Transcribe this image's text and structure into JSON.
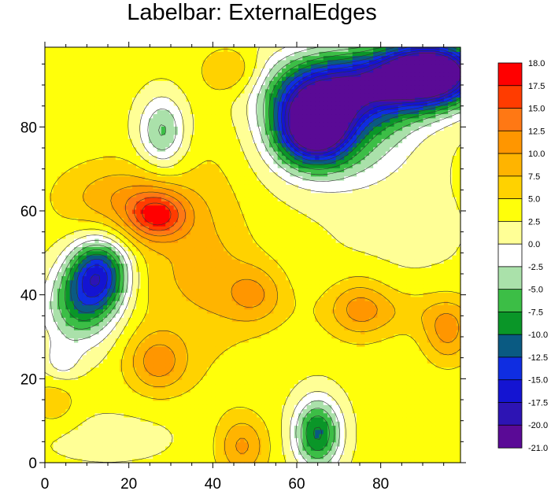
{
  "chart_data": {
    "type": "heatmap",
    "subtype": "filled-contour",
    "title": "Labelbar: ExternalEdges",
    "xlabel": "",
    "ylabel": "",
    "xlim": [
      0,
      99
    ],
    "ylim": [
      0,
      99
    ],
    "x_ticks": [
      0,
      20,
      40,
      60,
      80
    ],
    "x_tick_labels": [
      "0",
      "20",
      "40",
      "60",
      "80"
    ],
    "y_ticks": [
      0,
      20,
      40,
      60,
      80
    ],
    "y_tick_labels": [
      "0",
      "20",
      "40",
      "60",
      "80"
    ],
    "x_minor_step": 5,
    "y_minor_step": 5,
    "grid": false,
    "levels": [
      -21.0,
      -20.0,
      -17.5,
      -15.0,
      -12.5,
      -10.0,
      -7.5,
      -5.0,
      -2.5,
      0.0,
      2.5,
      5.0,
      7.5,
      10.0,
      12.5,
      15.0,
      17.5,
      18.0
    ],
    "level_labels": [
      "-21.0",
      "-20.0",
      "-17.5",
      "-15.0",
      "-12.5",
      "-10.0",
      "-7.5",
      "-5.0",
      "-2.5",
      "0.0",
      "2.5",
      "5.0",
      "7.5",
      "10.0",
      "12.5",
      "15.0",
      "17.5",
      "18.0"
    ],
    "colors": [
      "#5a0a96",
      "#2d14b4",
      "#1414d2",
      "#0f2de1",
      "#0a5a82",
      "#0a9628",
      "#3cbe46",
      "#aae1aa",
      "#ffffff",
      "#ffff96",
      "#ffff0a",
      "#ffd200",
      "#ffb400",
      "#ff9600",
      "#ff7814",
      "#ff3c00",
      "#ff0000"
    ],
    "colorbar": {
      "position": "right",
      "orientation": "vertical",
      "label_edges": "external"
    },
    "baseline": 3.5,
    "features": [
      {
        "x": 92,
        "y": 93,
        "amp": -30,
        "sx": 8,
        "sy": 5
      },
      {
        "x": 74,
        "y": 90,
        "amp": -18,
        "sx": 14,
        "sy": 6
      },
      {
        "x": 64,
        "y": 80,
        "amp": -24,
        "sx": 6,
        "sy": 6
      },
      {
        "x": 70,
        "y": 80,
        "amp": -10,
        "sx": 12,
        "sy": 9
      },
      {
        "x": 13,
        "y": 45,
        "amp": -18,
        "sx": 5,
        "sy": 6
      },
      {
        "x": 8,
        "y": 37,
        "amp": -10,
        "sx": 6,
        "sy": 7
      },
      {
        "x": 65,
        "y": 7,
        "amp": -14,
        "sx": 4,
        "sy": 6
      },
      {
        "x": 28,
        "y": 79,
        "amp": -9,
        "sx": 4,
        "sy": 6
      },
      {
        "x": 27,
        "y": 59,
        "amp": 12,
        "sx": 5,
        "sy": 4
      },
      {
        "x": 18,
        "y": 63,
        "amp": 6,
        "sx": 10,
        "sy": 6
      },
      {
        "x": 33,
        "y": 45,
        "amp": 3.5,
        "sx": 12,
        "sy": 10
      },
      {
        "x": 50,
        "y": 40,
        "amp": 6,
        "sx": 5,
        "sy": 5
      },
      {
        "x": 75,
        "y": 37,
        "amp": 6,
        "sx": 5,
        "sy": 5
      },
      {
        "x": 96,
        "y": 31,
        "amp": 7,
        "sx": 4,
        "sy": 5
      },
      {
        "x": 85,
        "y": 36,
        "amp": 3,
        "sx": 14,
        "sy": 4
      },
      {
        "x": 27,
        "y": 24,
        "amp": 8,
        "sx": 5,
        "sy": 5
      },
      {
        "x": 47,
        "y": 4,
        "amp": 7,
        "sx": 4,
        "sy": 5
      },
      {
        "x": 45,
        "y": 93,
        "amp": 5,
        "sx": 5,
        "sy": 4
      },
      {
        "x": 40,
        "y": 55,
        "amp": 2,
        "sx": 6,
        "sy": 25
      },
      {
        "x": 2,
        "y": 14,
        "amp": 3.5,
        "sx": 4,
        "sy": 4
      },
      {
        "x": 4,
        "y": 24,
        "amp": -4,
        "sx": 3,
        "sy": 3
      },
      {
        "x": 85,
        "y": 55,
        "amp": -1.5,
        "sx": 16,
        "sy": 12
      },
      {
        "x": 15,
        "y": 6,
        "amp": -2,
        "sx": 14,
        "sy": 5
      }
    ]
  }
}
